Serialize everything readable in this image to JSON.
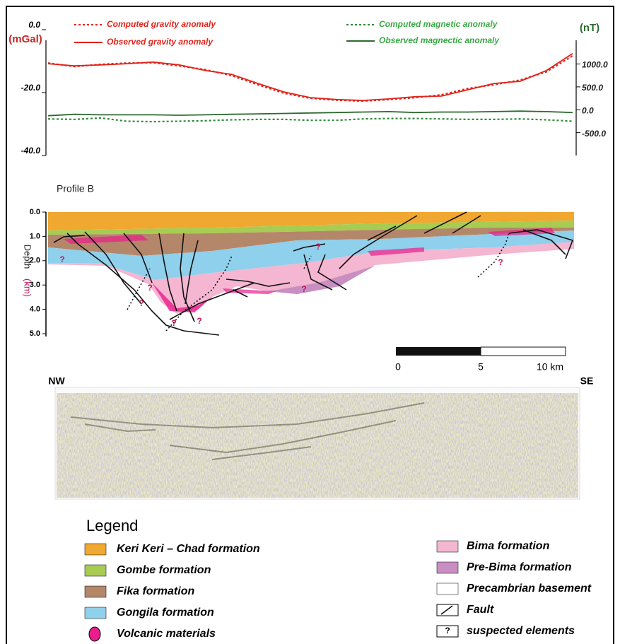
{
  "chart_data": {
    "type": "line",
    "axis_label": "(mGal)",
    "y2_axis_label": "(nT)",
    "categories": [
      null,
      null,
      null,
      null,
      null,
      null,
      null,
      null,
      null,
      null,
      null,
      null,
      null,
      null,
      null,
      null,
      null,
      null,
      null,
      null,
      null
    ],
    "ylim": [
      -40,
      0
    ],
    "yticks": [
      {
        "value": 0,
        "label": "0.0"
      },
      {
        "value": -20,
        "label": "-20.0"
      },
      {
        "value": -40,
        "label": "-40.0"
      }
    ],
    "y2lim": [
      -1000,
      1750
    ],
    "y2ticks": [
      {
        "value": 1000,
        "label": "1000.0"
      },
      {
        "value": 500,
        "label": "500.0"
      },
      {
        "value": 0,
        "label": "0.0"
      },
      {
        "value": -500,
        "label": "-500.0"
      }
    ],
    "series": [
      {
        "name": "Computed gravity anomaly",
        "color": "#e2231a",
        "dash": "dotted",
        "values": [
          -10.6,
          -11.7,
          -11.0,
          -10.6,
          -10.5,
          -11.5,
          -12.7,
          -14.6,
          -17.5,
          -20.2,
          -21.8,
          -22.4,
          -22.7,
          -22.2,
          -21.6,
          -20.7,
          -18.7,
          -17.5,
          -16.0,
          -13.4,
          -8.3
        ]
      },
      {
        "name": "Observed gravity anomaly",
        "color": "#e2231a",
        "dash": "solid",
        "values": [
          -10.8,
          -11.5,
          -11.2,
          -10.8,
          -10.3,
          -11.2,
          -13.0,
          -14.2,
          -17.1,
          -19.8,
          -21.6,
          -22.2,
          -22.5,
          -22.0,
          -21.3,
          -21.1,
          -19.1,
          -17.1,
          -16.4,
          -13.0,
          -7.6
        ]
      },
      {
        "name": "Computed magnetic anomaly",
        "color": "#2e8b3a",
        "dash": "dotted",
        "axis": "y2",
        "values": [
          -200,
          -210,
          -180,
          -250,
          -260,
          -250,
          -240,
          -220,
          -210,
          -210,
          -230,
          -230,
          -200,
          -190,
          -190,
          -200,
          -210,
          -210,
          -200,
          -220,
          -250
        ]
      },
      {
        "name": "Observed magnectic anomaly",
        "color": "#2e6b30",
        "dash": "solid",
        "axis": "y2",
        "values": [
          -130,
          -100,
          -110,
          -110,
          -110,
          -120,
          -110,
          -100,
          -90,
          -80,
          -70,
          -60,
          -50,
          -40,
          -60,
          -50,
          -50,
          -40,
          -30,
          -40,
          -60
        ]
      }
    ]
  },
  "cross_section": {
    "title": "Profile B",
    "depth_label": "Depth",
    "depth_unit": "(km)",
    "depth_ticks": [
      "0.0",
      "1.0",
      "2.0",
      "3.0",
      "4.0",
      "5.0"
    ],
    "suspected_mark": "?"
  },
  "scale_bar": {
    "labels": [
      "0",
      "5",
      "10 km"
    ]
  },
  "seismic": {
    "left_label": "NW",
    "right_label": "SE"
  },
  "legend": {
    "title": "Legend",
    "items": [
      {
        "label": "Keri Keri – Chad formation"
      },
      {
        "label": "Gombe formation"
      },
      {
        "label": "Fika formation"
      },
      {
        "label": "Gongila formation"
      },
      {
        "label": "Volcanic materials"
      },
      {
        "label": "Bima formation"
      },
      {
        "label": "Pre-Bima formation"
      },
      {
        "label": "Precambrian basement"
      },
      {
        "label": "Fault"
      },
      {
        "label": "suspected elements",
        "symbol": "?"
      }
    ]
  }
}
